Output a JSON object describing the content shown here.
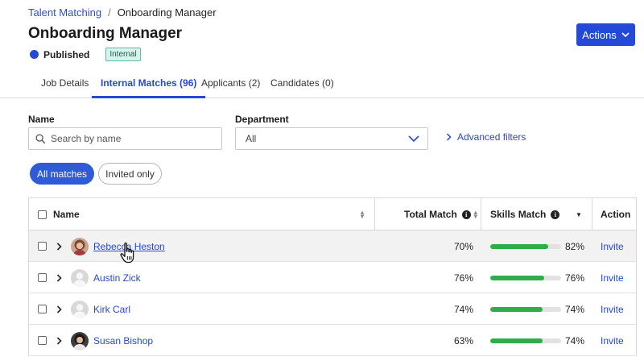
{
  "breadcrumb": {
    "parent": "Talent Matching",
    "separator": "/",
    "current": "Onboarding Manager"
  },
  "header": {
    "title": "Onboarding Manager",
    "actions_label": "Actions"
  },
  "status": {
    "label": "Published",
    "badge": "Internal",
    "dot_color": "#2448d8"
  },
  "tabs": [
    {
      "label": "Job Details",
      "active": false
    },
    {
      "label": "Internal Matches (96)",
      "active": true
    },
    {
      "label": "Applicants (2)",
      "active": false
    },
    {
      "label": "Candidates (0)",
      "active": false
    }
  ],
  "filters": {
    "name_label": "Name",
    "name_placeholder": "Search by name",
    "department_label": "Department",
    "department_value": "All",
    "advanced_label": "Advanced filters"
  },
  "toggle": {
    "all_label": "All matches",
    "invited_label": "Invited only"
  },
  "table": {
    "headers": {
      "name": "Name",
      "total": "Total Match",
      "skills": "Skills Match",
      "action": "Action"
    },
    "rows": [
      {
        "name": "Rebecca Heston",
        "total": "70%",
        "skills": "82%",
        "skills_fraction": 0.82,
        "action": "Invite",
        "avatar": "photo-woman-1"
      },
      {
        "name": "Austin Zick",
        "total": "76%",
        "skills": "76%",
        "skills_fraction": 0.76,
        "action": "Invite",
        "avatar": "placeholder-person"
      },
      {
        "name": "Kirk Carl",
        "total": "74%",
        "skills": "74%",
        "skills_fraction": 0.74,
        "action": "Invite",
        "avatar": "placeholder-person"
      },
      {
        "name": "Susan Bishop",
        "total": "63%",
        "skills": "74%",
        "skills_fraction": 0.74,
        "action": "Invite",
        "avatar": "photo-woman-2"
      }
    ]
  },
  "colors": {
    "primary": "#2448d8",
    "progress": "#2fad4a",
    "badge_bg": "#d9f3ec"
  }
}
